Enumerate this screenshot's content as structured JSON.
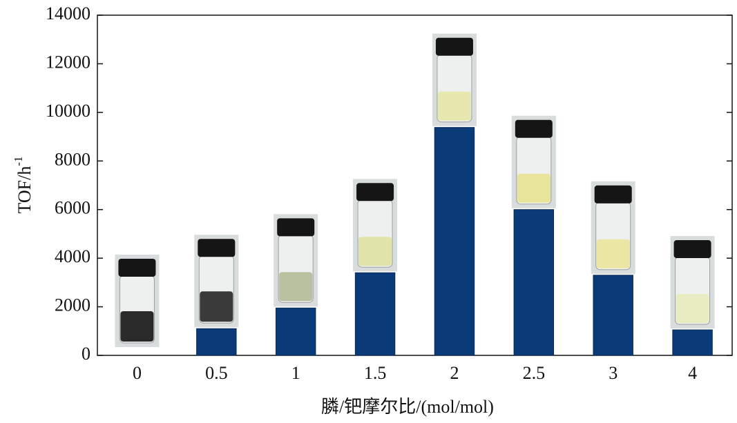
{
  "chart_data": {
    "type": "bar",
    "x_label": "膦/钯摩尔比/(mol/mol)",
    "y_label": "TOF/h",
    "y_label_superscript": "-1",
    "categories": [
      "0",
      "0.5",
      "1",
      "1.5",
      "2",
      "2.5",
      "3",
      "4"
    ],
    "values": [
      0,
      1100,
      1950,
      3400,
      9380,
      6000,
      3300,
      1050
    ],
    "color": "#0b3a78",
    "ylim": [
      0,
      14000
    ],
    "yticks": [
      0,
      2000,
      4000,
      6000,
      8000,
      10000,
      12000,
      14000
    ],
    "grid": false
  }
}
